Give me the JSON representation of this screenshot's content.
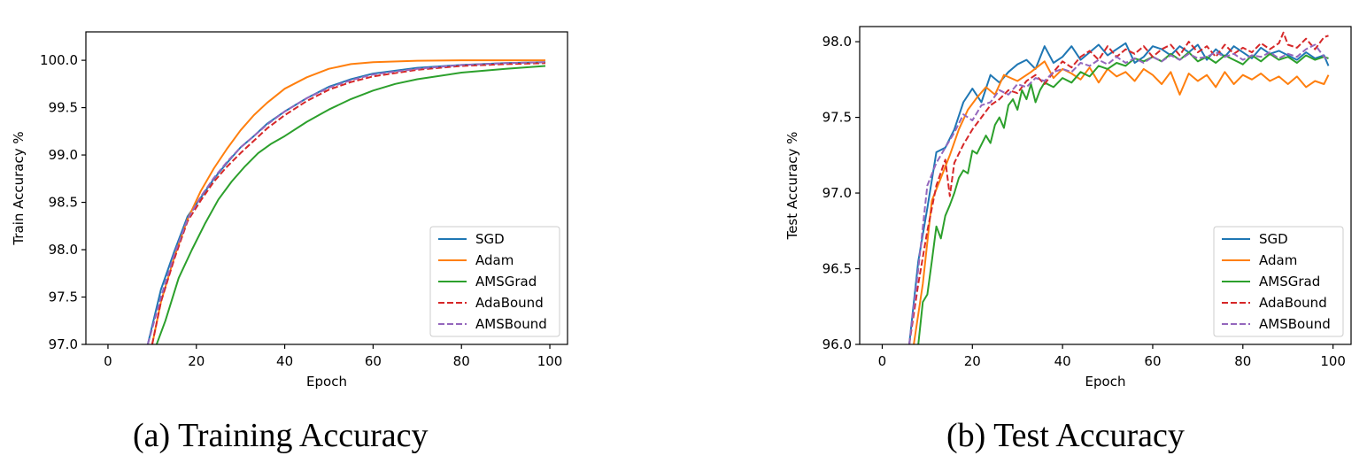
{
  "chart_data": [
    {
      "type": "line",
      "caption": "(a) Training Accuracy",
      "xlabel": "Epoch",
      "ylabel": "Train Accuracy %",
      "xlim": [
        -5,
        104
      ],
      "ylim": [
        97.0,
        100.3
      ],
      "xticks": [
        0,
        20,
        40,
        60,
        80,
        100
      ],
      "xtick_labels": [
        "0",
        "20",
        "40",
        "60",
        "80",
        "100"
      ],
      "yticks": [
        97.0,
        97.5,
        98.0,
        98.5,
        99.0,
        99.5,
        100.0
      ],
      "ytick_labels": [
        "97.0",
        "97.5",
        "98.0",
        "98.5",
        "99.0",
        "99.5",
        "100.0"
      ],
      "legend_position": "lower-right",
      "series": [
        {
          "name": "SGD",
          "color": "#1f77b4",
          "dash": "solid",
          "x": [
            9,
            12,
            15,
            18,
            21,
            24,
            27,
            30,
            33,
            36,
            40,
            45,
            50,
            55,
            60,
            70,
            80,
            90,
            99
          ],
          "y": [
            97.0,
            97.58,
            97.98,
            98.35,
            98.55,
            98.75,
            98.92,
            99.08,
            99.2,
            99.33,
            99.46,
            99.6,
            99.72,
            99.8,
            99.86,
            99.92,
            99.95,
            99.97,
            99.98
          ]
        },
        {
          "name": "Adam",
          "color": "#ff7f0e",
          "dash": "solid",
          "x": [
            10,
            12,
            15,
            18,
            21,
            24,
            27,
            30,
            33,
            36,
            40,
            45,
            50,
            55,
            60,
            70,
            80,
            90,
            99
          ],
          "y": [
            97.0,
            97.45,
            97.92,
            98.32,
            98.62,
            98.86,
            99.07,
            99.26,
            99.42,
            99.55,
            99.7,
            99.82,
            99.91,
            99.96,
            99.98,
            99.995,
            100.0,
            100.0,
            100.0
          ]
        },
        {
          "name": "AMSGrad",
          "color": "#2ca02c",
          "dash": "solid",
          "x": [
            11,
            13,
            16,
            19,
            22,
            25,
            28,
            31,
            34,
            37,
            40,
            45,
            50,
            55,
            60,
            65,
            70,
            80,
            90,
            99
          ],
          "y": [
            97.0,
            97.25,
            97.7,
            98.0,
            98.28,
            98.53,
            98.72,
            98.88,
            99.02,
            99.12,
            99.2,
            99.35,
            99.48,
            99.59,
            99.68,
            99.75,
            99.8,
            99.87,
            99.91,
            99.94
          ]
        },
        {
          "name": "AdaBound",
          "color": "#d62728",
          "dash": "dashed",
          "x": [
            10,
            12,
            15,
            18,
            21,
            24,
            27,
            30,
            33,
            36,
            40,
            45,
            50,
            55,
            60,
            70,
            80,
            90,
            99
          ],
          "y": [
            97.0,
            97.45,
            97.9,
            98.3,
            98.52,
            98.72,
            98.88,
            99.02,
            99.15,
            99.28,
            99.42,
            99.57,
            99.69,
            99.77,
            99.83,
            99.9,
            99.94,
            99.96,
            99.97
          ]
        },
        {
          "name": "AMSBound",
          "color": "#9467bd",
          "dash": "dashed",
          "x": [
            9,
            12,
            15,
            18,
            21,
            24,
            27,
            30,
            33,
            36,
            40,
            45,
            50,
            55,
            60,
            70,
            80,
            90,
            99
          ],
          "y": [
            97.0,
            97.5,
            97.95,
            98.32,
            98.56,
            98.76,
            98.93,
            99.08,
            99.2,
            99.32,
            99.46,
            99.6,
            99.71,
            99.79,
            99.85,
            99.91,
            99.95,
            99.97,
            99.98
          ]
        }
      ]
    },
    {
      "type": "line",
      "caption": "(b) Test Accuracy",
      "xlabel": "Epoch",
      "ylabel": "Test Accuracy %",
      "xlim": [
        -5,
        104
      ],
      "ylim": [
        96.0,
        98.1
      ],
      "xticks": [
        0,
        20,
        40,
        60,
        80,
        100
      ],
      "xtick_labels": [
        "0",
        "20",
        "40",
        "60",
        "80",
        "100"
      ],
      "yticks": [
        96.0,
        96.5,
        97.0,
        97.5,
        98.0
      ],
      "ytick_labels": [
        "96.0",
        "96.5",
        "97.0",
        "97.5",
        "98.0"
      ],
      "legend_position": "lower-right",
      "series": [
        {
          "name": "SGD",
          "color": "#1f77b4",
          "dash": "solid",
          "x": [
            6,
            8,
            10,
            12,
            14,
            16,
            18,
            20,
            22,
            24,
            26,
            28,
            30,
            32,
            34,
            36,
            38,
            40,
            42,
            44,
            46,
            48,
            50,
            52,
            54,
            56,
            58,
            60,
            62,
            64,
            66,
            68,
            70,
            72,
            74,
            76,
            78,
            80,
            82,
            84,
            86,
            88,
            90,
            92,
            94,
            96,
            98,
            99
          ],
          "y": [
            96.0,
            96.55,
            96.9,
            97.27,
            97.3,
            97.42,
            97.6,
            97.69,
            97.6,
            97.78,
            97.73,
            97.8,
            97.85,
            97.88,
            97.82,
            97.97,
            97.86,
            97.9,
            97.97,
            97.88,
            97.93,
            97.98,
            97.91,
            97.95,
            97.99,
            97.86,
            97.9,
            97.97,
            97.95,
            97.91,
            97.97,
            97.93,
            97.98,
            97.88,
            97.95,
            97.9,
            97.97,
            97.93,
            97.89,
            97.96,
            97.92,
            97.94,
            97.91,
            97.88,
            97.93,
            97.89,
            97.91,
            97.84
          ]
        },
        {
          "name": "Adam",
          "color": "#ff7f0e",
          "dash": "solid",
          "x": [
            7,
            9,
            11,
            13,
            15,
            17,
            19,
            21,
            23,
            25,
            27,
            30,
            33,
            36,
            38,
            40,
            42,
            44,
            46,
            48,
            50,
            52,
            54,
            56,
            58,
            60,
            62,
            64,
            66,
            68,
            70,
            72,
            74,
            76,
            78,
            80,
            82,
            84,
            86,
            88,
            90,
            92,
            94,
            96,
            98,
            99
          ],
          "y": [
            96.0,
            96.4,
            96.95,
            97.1,
            97.25,
            97.42,
            97.55,
            97.63,
            97.7,
            97.65,
            97.78,
            97.74,
            97.8,
            97.87,
            97.76,
            97.82,
            97.79,
            97.75,
            97.83,
            97.73,
            97.82,
            97.77,
            97.8,
            97.74,
            97.82,
            97.78,
            97.72,
            97.8,
            97.65,
            97.79,
            97.74,
            97.78,
            97.7,
            97.8,
            97.72,
            97.78,
            97.75,
            97.79,
            97.74,
            97.77,
            97.72,
            97.77,
            97.7,
            97.74,
            97.72,
            97.78
          ]
        },
        {
          "name": "AMSGrad",
          "color": "#2ca02c",
          "dash": "solid",
          "x": [
            8,
            9,
            10,
            11,
            12,
            13,
            14,
            15,
            16,
            17,
            18,
            19,
            20,
            21,
            22,
            23,
            24,
            25,
            26,
            27,
            28,
            29,
            30,
            31,
            32,
            33,
            34,
            35,
            36,
            38,
            40,
            42,
            44,
            46,
            48,
            50,
            52,
            54,
            56,
            58,
            60,
            62,
            64,
            66,
            68,
            70,
            72,
            74,
            76,
            78,
            80,
            82,
            84,
            86,
            88,
            90,
            92,
            94,
            96,
            98,
            99
          ],
          "y": [
            96.0,
            96.28,
            96.33,
            96.55,
            96.78,
            96.7,
            96.85,
            96.92,
            97.0,
            97.1,
            97.15,
            97.13,
            97.28,
            97.26,
            97.32,
            97.38,
            97.33,
            97.45,
            97.5,
            97.43,
            97.58,
            97.62,
            97.55,
            97.68,
            97.62,
            97.72,
            97.6,
            97.68,
            97.73,
            97.7,
            97.76,
            97.73,
            97.8,
            97.77,
            97.84,
            97.82,
            97.86,
            97.84,
            97.89,
            97.87,
            97.9,
            97.87,
            97.92,
            97.88,
            97.93,
            97.87,
            97.9,
            97.86,
            97.91,
            97.88,
            97.85,
            97.91,
            97.87,
            97.92,
            97.88,
            97.9,
            97.86,
            97.91,
            97.88,
            97.9,
            97.89
          ]
        },
        {
          "name": "AdaBound",
          "color": "#d62728",
          "dash": "dashed",
          "x": [
            6,
            8,
            10,
            12,
            14,
            15,
            16,
            18,
            20,
            22,
            24,
            26,
            28,
            30,
            32,
            34,
            36,
            38,
            40,
            42,
            44,
            46,
            48,
            50,
            52,
            54,
            56,
            58,
            60,
            62,
            64,
            66,
            68,
            70,
            72,
            74,
            76,
            78,
            80,
            82,
            84,
            86,
            88,
            89,
            90,
            92,
            94,
            96,
            98,
            99
          ],
          "y": [
            96.0,
            96.4,
            96.75,
            97.05,
            97.22,
            96.98,
            97.2,
            97.32,
            97.42,
            97.5,
            97.58,
            97.62,
            97.68,
            97.66,
            97.74,
            97.78,
            97.72,
            97.8,
            97.87,
            97.83,
            97.9,
            97.94,
            97.88,
            97.97,
            97.9,
            97.95,
            97.92,
            97.97,
            97.9,
            97.95,
            97.98,
            97.91,
            98.0,
            97.93,
            97.97,
            97.9,
            97.98,
            97.92,
            97.96,
            97.93,
            97.99,
            97.95,
            97.99,
            98.06,
            97.98,
            97.96,
            98.02,
            97.95,
            98.03,
            98.04
          ]
        },
        {
          "name": "AMSBound",
          "color": "#9467bd",
          "dash": "dashed",
          "x": [
            6,
            8,
            10,
            12,
            14,
            16,
            18,
            20,
            22,
            24,
            26,
            28,
            30,
            32,
            34,
            36,
            38,
            40,
            42,
            44,
            46,
            48,
            50,
            52,
            54,
            56,
            58,
            60,
            62,
            64,
            66,
            68,
            70,
            72,
            74,
            76,
            78,
            80,
            82,
            84,
            86,
            88,
            90,
            92,
            94,
            96,
            98,
            99
          ],
          "y": [
            96.0,
            96.5,
            97.05,
            97.2,
            97.3,
            97.4,
            97.52,
            97.48,
            97.58,
            97.6,
            97.68,
            97.65,
            97.72,
            97.7,
            97.76,
            97.74,
            97.8,
            97.82,
            97.8,
            97.86,
            97.84,
            97.88,
            97.85,
            97.9,
            97.86,
            97.89,
            97.86,
            97.9,
            97.87,
            97.91,
            97.88,
            97.92,
            97.89,
            97.9,
            97.93,
            97.9,
            97.92,
            97.88,
            97.91,
            97.9,
            97.93,
            97.89,
            97.92,
            97.9,
            97.95,
            97.98,
            97.9,
            97.88
          ]
        }
      ]
    }
  ]
}
